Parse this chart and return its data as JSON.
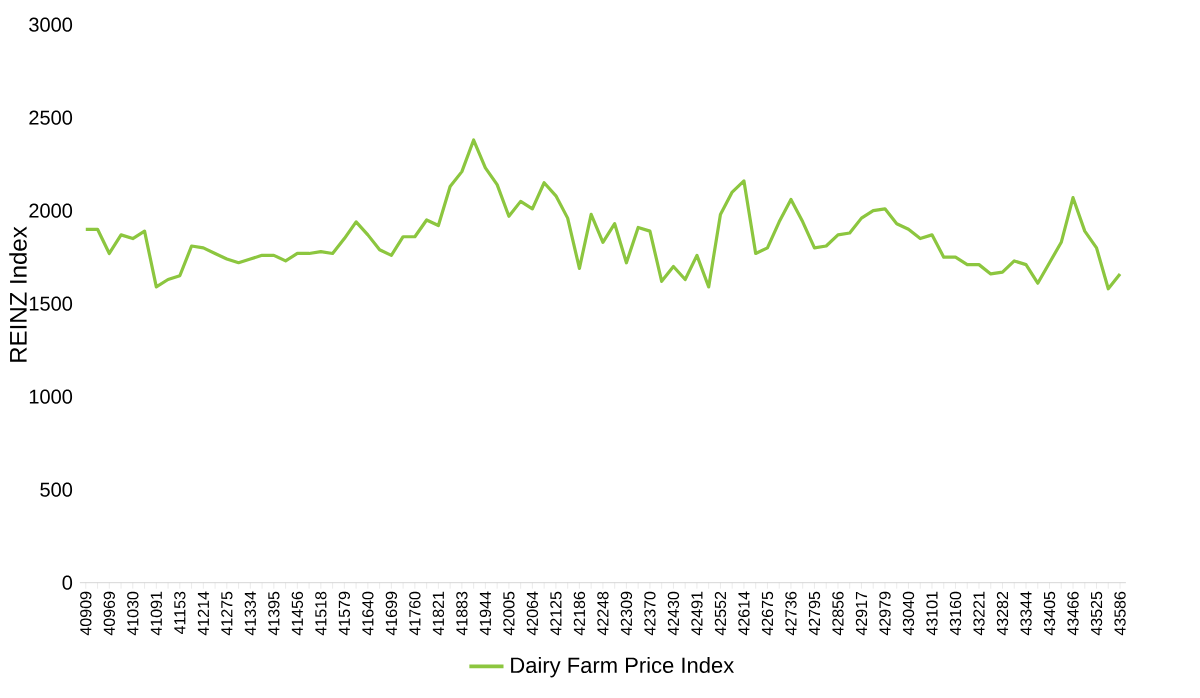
{
  "chart_data": {
    "type": "line",
    "ylabel": "REINZ Index",
    "categories": [
      "40909",
      null,
      "40969",
      null,
      "41030",
      null,
      "41091",
      null,
      "41153",
      null,
      "41214",
      null,
      "41275",
      null,
      "41334",
      null,
      "41395",
      null,
      "41456",
      null,
      "41518",
      null,
      "41579",
      null,
      "41640",
      null,
      "41699",
      null,
      "41760",
      null,
      "41821",
      null,
      "41883",
      null,
      "41944",
      null,
      "42005",
      null,
      "42064",
      null,
      "42125",
      null,
      "42186",
      null,
      "42248",
      null,
      "42309",
      null,
      "42370",
      null,
      "42430",
      null,
      "42491",
      null,
      "42552",
      null,
      "42614",
      null,
      "42675",
      null,
      "42736",
      null,
      "42795",
      null,
      "42856",
      null,
      "42917",
      null,
      "42979",
      null,
      "43040",
      null,
      "43101",
      null,
      "43160",
      null,
      "43221",
      null,
      "43282",
      null,
      "43344",
      null,
      "43405",
      null,
      "43466",
      null,
      "43525",
      null,
      "43586"
    ],
    "series": [
      {
        "name": "Dairy Farm Price Index",
        "color": "#8cc63f",
        "values": [
          1900,
          1900,
          1770,
          1870,
          1850,
          1890,
          1590,
          1630,
          1650,
          1810,
          1800,
          1770,
          1740,
          1720,
          1740,
          1760,
          1760,
          1730,
          1770,
          1770,
          1780,
          1770,
          1850,
          1940,
          1870,
          1790,
          1760,
          1860,
          1860,
          1950,
          1920,
          2130,
          2210,
          2380,
          2230,
          2140,
          1970,
          2050,
          2010,
          2150,
          2080,
          1960,
          1690,
          1980,
          1830,
          1930,
          1720,
          1910,
          1890,
          1620,
          1700,
          1630,
          1760,
          1590,
          1980,
          2100,
          2160,
          1770,
          1800,
          1940,
          2060,
          1940,
          1800,
          1810,
          1870,
          1880,
          1960,
          2000,
          2010,
          1930,
          1900,
          1850,
          1870,
          1750,
          1750,
          1710,
          1710,
          1660,
          1670,
          1730,
          1710,
          1610,
          1720,
          1830,
          2070,
          1890,
          1800,
          1580,
          1660
        ]
      }
    ],
    "ylim": [
      0,
      3000
    ],
    "yticks": [
      0,
      500,
      1000,
      1500,
      2000,
      2500,
      3000
    ],
    "grid": false,
    "legend": "bottom",
    "marker": "none",
    "line_style": "solid"
  }
}
